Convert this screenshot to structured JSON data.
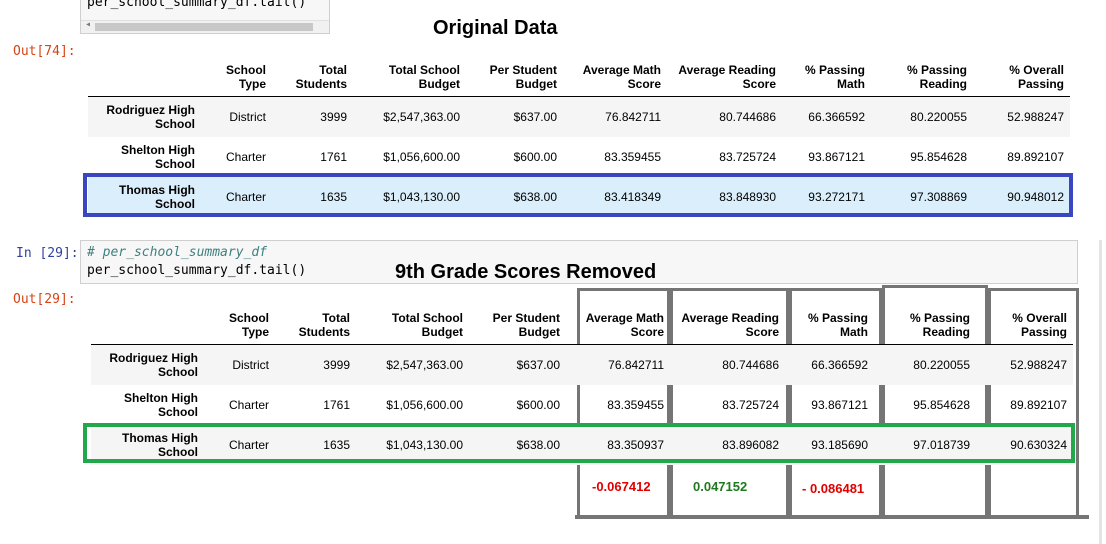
{
  "top_cell": {
    "code": "per_school_summary_df.tail()",
    "out_prompt": "Out[74]:",
    "heading": "Original Data"
  },
  "bottom_cell": {
    "in_prompt": "In [29]:",
    "comment": "# per_school_summary_df",
    "code": "per_school_summary_df.tail()",
    "out_prompt": "Out[29]:",
    "heading": "9th Grade Scores Removed"
  },
  "columns": [
    [
      "School",
      "Type"
    ],
    [
      "Total",
      "Students"
    ],
    [
      "Total School",
      "Budget"
    ],
    [
      "Per Student",
      "Budget"
    ],
    [
      "Average Math",
      "Score"
    ],
    [
      "Average Reading",
      "Score"
    ],
    [
      "% Passing",
      "Math"
    ],
    [
      "% Passing",
      "Reading"
    ],
    [
      "% Overall",
      "Passing"
    ]
  ],
  "original_rows": [
    {
      "name": [
        "Rodriguez High",
        "School"
      ],
      "cells": [
        "District",
        "3999",
        "$2,547,363.00",
        "$637.00",
        "76.842711",
        "80.744686",
        "66.366592",
        "80.220055",
        "52.988247"
      ]
    },
    {
      "name": [
        "Shelton High",
        "School"
      ],
      "cells": [
        "Charter",
        "1761",
        "$1,056,600.00",
        "$600.00",
        "83.359455",
        "83.725724",
        "93.867121",
        "95.854628",
        "89.892107"
      ]
    },
    {
      "name": [
        "Thomas High",
        "School"
      ],
      "cells": [
        "Charter",
        "1635",
        "$1,043,130.00",
        "$638.00",
        "83.418349",
        "83.848930",
        "93.272171",
        "97.308869",
        "90.948012"
      ]
    }
  ],
  "removed_rows": [
    {
      "name": [
        "Rodriguez High",
        "School"
      ],
      "cells": [
        "District",
        "3999",
        "$2,547,363.00",
        "$637.00",
        "76.842711",
        "80.744686",
        "66.366592",
        "80.220055",
        "52.988247"
      ]
    },
    {
      "name": [
        "Shelton High",
        "School"
      ],
      "cells": [
        "Charter",
        "1761",
        "$1,056,600.00",
        "$600.00",
        "83.359455",
        "83.725724",
        "93.867121",
        "95.854628",
        "89.892107"
      ]
    },
    {
      "name": [
        "Thomas High",
        "School"
      ],
      "cells": [
        "Charter",
        "1635",
        "$1,043,130.00",
        "$638.00",
        "83.350937",
        "83.896082",
        "93.185690",
        "97.018739",
        "90.630324"
      ]
    }
  ],
  "differences": {
    "avg_math": "-0.067412",
    "avg_reading": "0.047152",
    "pct_passing_math": "- 0.086481"
  },
  "colors": {
    "original_highlight": "#3a46c0",
    "removed_highlight": "#22a84a",
    "negative": "#e00000",
    "positive": "#1f7a1f",
    "comparison_boxes": "#757575"
  }
}
